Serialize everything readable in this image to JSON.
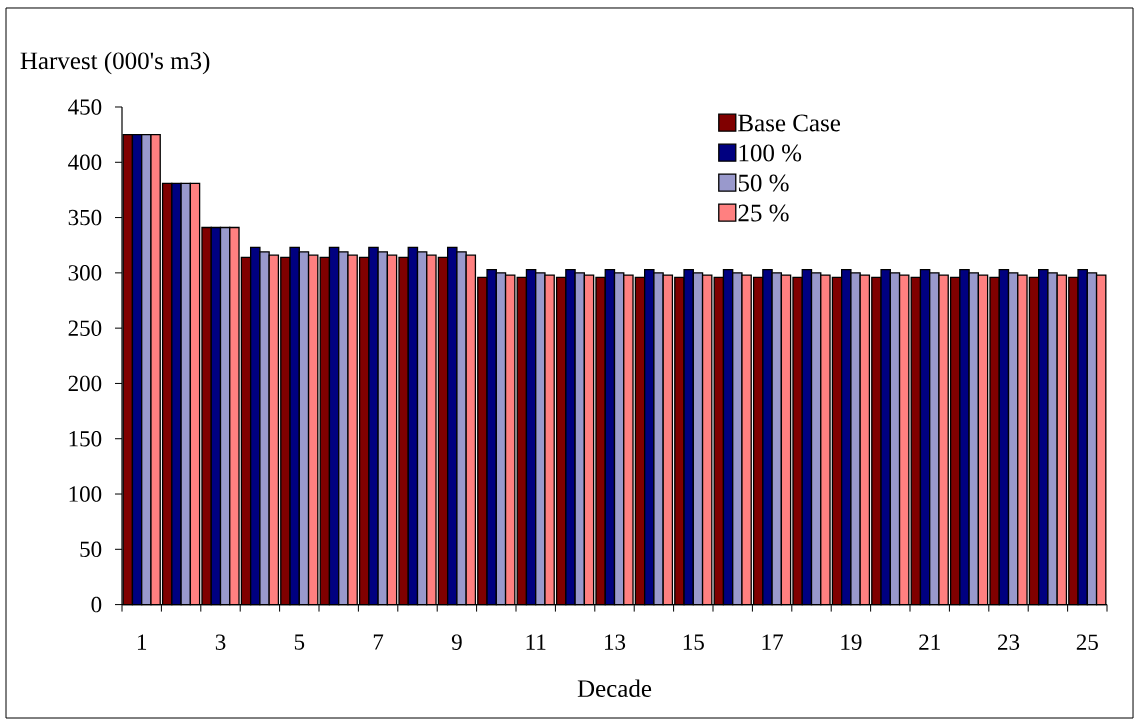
{
  "chart_data": {
    "type": "bar",
    "xlabel": "Decade",
    "ylabel": "Harvest (000's m3)",
    "categories": [
      "1",
      null,
      "3",
      null,
      "5",
      null,
      "7",
      null,
      "9",
      null,
      "11",
      null,
      "13",
      null,
      "15",
      null,
      "17",
      null,
      "19",
      null,
      "21",
      null,
      "23",
      null,
      "25"
    ],
    "series": [
      {
        "name": "Base Case",
        "color": "#800000",
        "values": [
          425,
          381,
          341,
          314,
          314,
          314,
          314,
          314,
          314,
          296,
          296,
          296,
          296,
          296,
          296,
          296,
          296,
          296,
          296,
          296,
          296,
          296,
          296,
          296,
          296
        ]
      },
      {
        "name": "100 %",
        "color": "#000080",
        "values": [
          425,
          381,
          341,
          323,
          323,
          323,
          323,
          323,
          323,
          303,
          303,
          303,
          303,
          303,
          303,
          303,
          303,
          303,
          303,
          303,
          303,
          303,
          303,
          303,
          303
        ]
      },
      {
        "name": "50 %",
        "color": "#9999cc",
        "values": [
          425,
          381,
          341,
          319,
          319,
          319,
          319,
          319,
          319,
          300,
          300,
          300,
          300,
          300,
          300,
          300,
          300,
          300,
          300,
          300,
          300,
          300,
          300,
          300,
          300
        ]
      },
      {
        "name": "25 %",
        "color": "#ff8080",
        "values": [
          425,
          381,
          341,
          316,
          316,
          316,
          316,
          316,
          316,
          298,
          298,
          298,
          298,
          298,
          298,
          298,
          298,
          298,
          298,
          298,
          298,
          298,
          298,
          298,
          298
        ]
      }
    ],
    "ylim": [
      0,
      450
    ],
    "yticks": [
      0,
      50,
      100,
      150,
      200,
      250,
      300,
      350,
      400,
      450
    ],
    "legend": "top right"
  }
}
